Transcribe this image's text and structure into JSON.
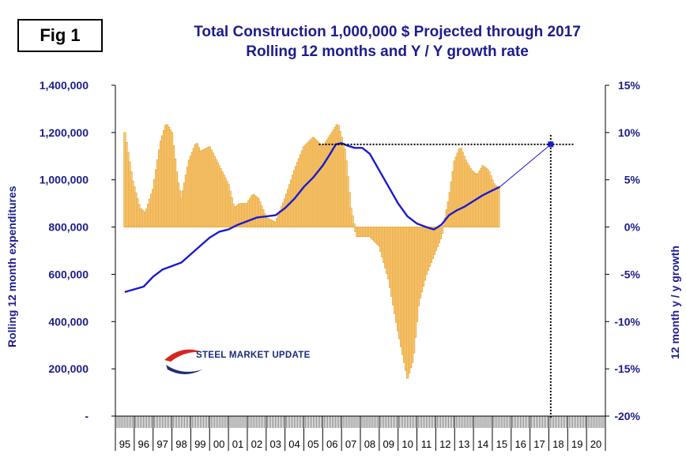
{
  "fig_label": "Fig 1",
  "title_line1": "Total Construction 1,000,000 $ Projected through 2017",
  "title_line2": "Rolling 12 months and Y / Y growth rate",
  "logo_text": "STEEL MARKET UPDATE",
  "colors": {
    "title": "#1c1c8c",
    "line": "#1a1ad0",
    "bars_fill": "#f7c97e",
    "bars_edge": "#e59a17",
    "axis_text": "#1c1c8c"
  },
  "chart_data": {
    "type": "bar+line",
    "ylabel_left": "Rolling 12 month expenditures",
    "ylabel_right": "12 month y / y growth",
    "yticks_left": [
      "1,400,000",
      "1,200,000",
      "1,000,000",
      "800,000",
      "600,000",
      "400,000",
      "200,000",
      "-"
    ],
    "yticks_right": [
      "15%",
      "10%",
      "5%",
      "0%",
      "-5%",
      "-10%",
      "-15%",
      "-20%"
    ],
    "ylim_left": [
      0,
      1400000
    ],
    "ylim_right": [
      -20,
      15
    ],
    "x_categories": [
      "95",
      "96",
      "97",
      "98",
      "99",
      "00",
      "01",
      "02",
      "03",
      "04",
      "05",
      "06",
      "07",
      "08",
      "09",
      "10",
      "11",
      "12",
      "13",
      "14",
      "15",
      "16",
      "17",
      "18",
      "19",
      "20"
    ],
    "series": [
      {
        "name": "Rolling 12 months",
        "kind": "line",
        "axis": "left",
        "x": [
          1995.0,
          1996.0,
          1996.5,
          1997.0,
          1997.5,
          1998.0,
          1998.5,
          1999.0,
          1999.5,
          2000.0,
          2000.5,
          2001.0,
          2001.5,
          2002.0,
          2002.5,
          2003.0,
          2003.5,
          2004.0,
          2004.5,
          2005.0,
          2005.5,
          2005.9,
          2006.2,
          2006.5,
          2006.8,
          2007.2,
          2007.6,
          2008.0,
          2008.5,
          2009.0,
          2009.5,
          2010.0,
          2010.5,
          2011.0,
          2011.4,
          2011.8,
          2012.2,
          2012.6,
          2013.0,
          2013.5,
          2014.0,
          2014.5,
          2014.9
        ],
        "y": [
          525000,
          548000,
          590000,
          620000,
          635000,
          650000,
          685000,
          720000,
          755000,
          780000,
          790000,
          810000,
          825000,
          840000,
          845000,
          850000,
          880000,
          920000,
          970000,
          1010000,
          1060000,
          1110000,
          1150000,
          1155000,
          1145000,
          1135000,
          1135000,
          1110000,
          1040000,
          970000,
          900000,
          845000,
          815000,
          800000,
          790000,
          810000,
          850000,
          870000,
          885000,
          910000,
          935000,
          955000,
          970000
        ]
      },
      {
        "name": "Y/Y growth",
        "kind": "bar",
        "axis": "right",
        "x": [
          1995.0,
          1995.4,
          1995.8,
          1996.1,
          1996.5,
          1996.9,
          1997.2,
          1997.5,
          1997.8,
          1998.0,
          1998.4,
          1998.8,
          1999.0,
          1999.5,
          2000.0,
          2000.5,
          2000.8,
          2001.1,
          2001.5,
          2001.8,
          2002.1,
          2002.5,
          2003.0,
          2003.5,
          2004.0,
          2004.5,
          2005.0,
          2005.5,
          2006.0,
          2006.3,
          2006.7,
          2007.0,
          2007.3,
          2007.6,
          2008.0,
          2008.5,
          2009.0,
          2009.5,
          2010.0,
          2010.3,
          2010.6,
          2011.0,
          2011.4,
          2011.8,
          2012.2,
          2012.5,
          2012.8,
          2013.1,
          2013.4,
          2013.7,
          2014.0,
          2014.3,
          2014.6,
          2014.9
        ],
        "y": [
          10,
          5,
          2,
          1.5,
          4,
          9,
          11,
          10,
          5,
          3,
          7,
          9,
          8,
          8.5,
          6.5,
          4.5,
          2,
          2.5,
          2.5,
          3.5,
          3,
          1,
          0.5,
          3,
          6,
          8.5,
          9.5,
          8.5,
          10,
          11,
          8,
          2,
          -1,
          -1,
          -1,
          -2,
          -5.5,
          -11,
          -16,
          -14,
          -8,
          -5,
          -3,
          -1,
          3,
          7,
          8.5,
          7,
          6,
          5.5,
          6.5,
          6,
          4.5,
          4
        ]
      }
    ],
    "projection": {
      "x": [
        2014.9,
        2017.6
      ],
      "y": [
        970000,
        1150000
      ],
      "hline_x": [
        2005.3,
        2018.8
      ],
      "hline_y": 1150000,
      "vline_x": 2017.6
    },
    "grid": false,
    "legend": "none"
  }
}
